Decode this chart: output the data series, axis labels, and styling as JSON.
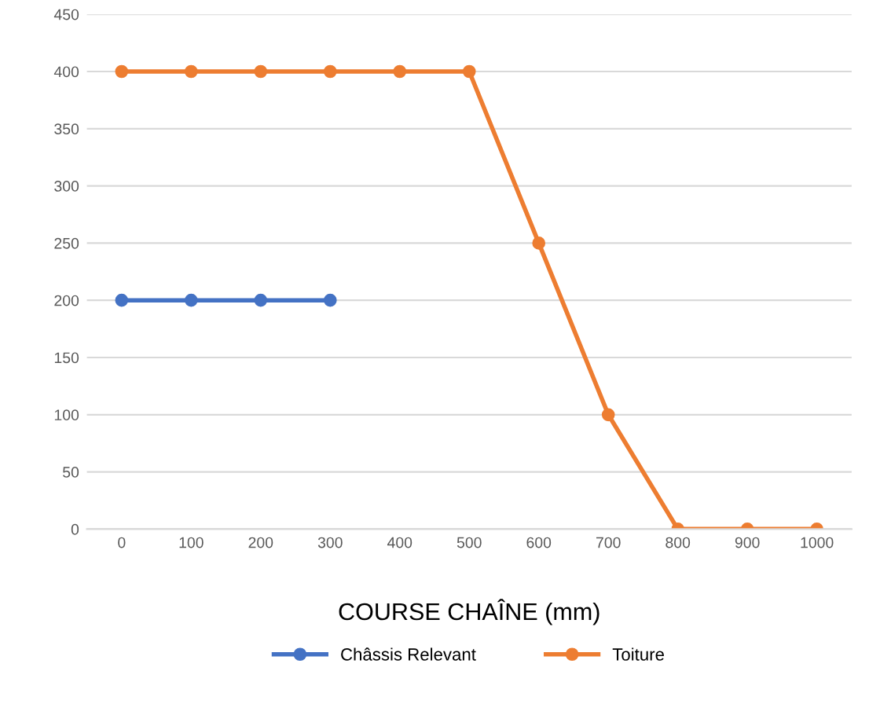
{
  "chart_data": {
    "type": "line",
    "xlabel": "COURSE CHAÎNE (mm)",
    "categories": [
      "0",
      "100",
      "200",
      "300",
      "400",
      "500",
      "600",
      "700",
      "800",
      "900",
      "1000"
    ],
    "series": [
      {
        "name": "Châssis Relevant",
        "color": "#4472c4",
        "values": [
          200,
          200,
          200,
          200,
          null,
          null,
          null,
          null,
          null,
          null,
          null
        ]
      },
      {
        "name": "Toiture",
        "color": "#ed7d31",
        "values": [
          400,
          400,
          400,
          400,
          400,
          400,
          250,
          100,
          0,
          0,
          0
        ]
      }
    ],
    "ylim": [
      0,
      450
    ],
    "yticks": [
      0,
      50,
      100,
      150,
      200,
      250,
      300,
      350,
      400,
      450
    ],
    "grid": "y",
    "legend": "bottom",
    "marker": "circle",
    "line_style": "solid"
  }
}
